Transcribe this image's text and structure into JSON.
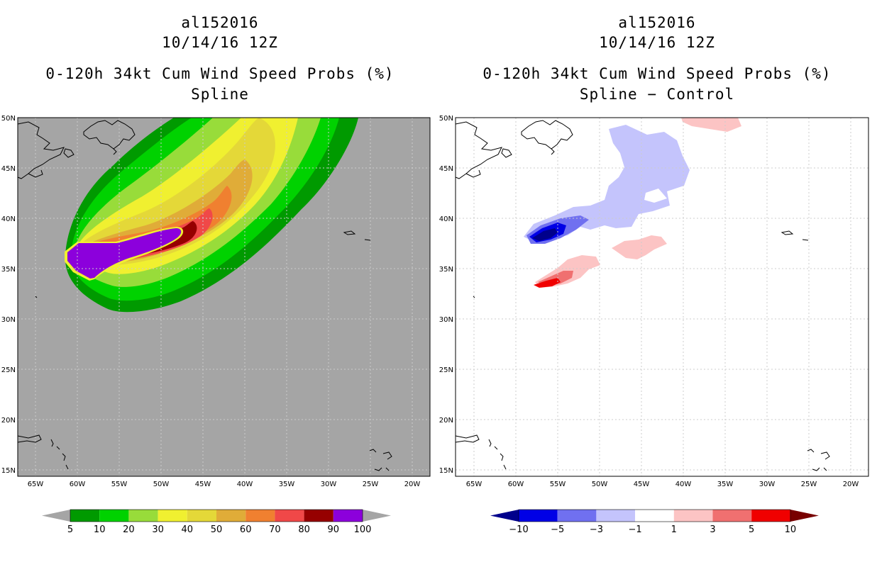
{
  "left": {
    "storm_id": "al152016",
    "date": "10/14/16 12Z",
    "product": "0-120h 34kt Cum Wind Speed Probs (%)",
    "subtitle": "Spline"
  },
  "right": {
    "storm_id": "al152016",
    "date": "10/14/16 12Z",
    "product": "0-120h 34kt Cum Wind Speed Probs (%)",
    "subtitle": "Spline − Control"
  },
  "axes": {
    "lat_labels": [
      "15N",
      "20N",
      "25N",
      "30N",
      "35N",
      "40N",
      "45N",
      "50N"
    ],
    "lon_labels": [
      "65W",
      "60W",
      "55W",
      "50W",
      "45W",
      "40W",
      "35W",
      "30W",
      "25W",
      "20W"
    ]
  },
  "colorbar_left": {
    "labels": [
      "5",
      "10",
      "20",
      "30",
      "40",
      "50",
      "60",
      "70",
      "80",
      "90",
      "100"
    ],
    "colors": [
      "#009a00",
      "#00d200",
      "#98dc3a",
      "#f0f030",
      "#e4d838",
      "#e0ac38",
      "#f08030",
      "#f04848",
      "#960000",
      "#8c00dc"
    ],
    "end_color": "#a5a5a5"
  },
  "colorbar_right": {
    "labels": [
      "−10",
      "−5",
      "−3",
      "−1",
      "1",
      "3",
      "5",
      "10"
    ],
    "colors": [
      "#0000e6",
      "#7070f0",
      "#c4c4fc",
      "#ffffff",
      "#fcc4c4",
      "#f07070",
      "#f00000"
    ],
    "low_end_color": "#00008c",
    "high_end_color": "#780000"
  },
  "colors": {
    "map_background": "#a5a5a5",
    "grid": "#cccccc"
  }
}
